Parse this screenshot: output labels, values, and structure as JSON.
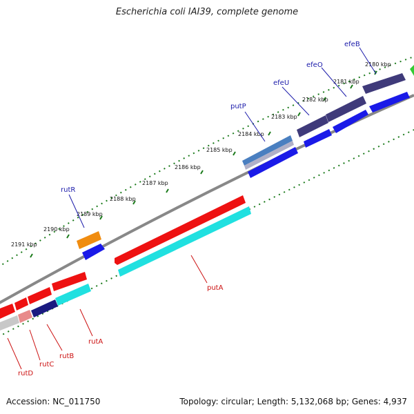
{
  "title": "Escherichia coli IAI39, complete genome",
  "footer": {
    "accession": "Accession: NC_011750",
    "summary": "Topology: circular; Length: 5,132,068 bp; Genes: 4,937"
  },
  "colors": {
    "forward_label": "#1a1aaa",
    "reverse_label": "#cc1111",
    "tick": "#1a7a1a",
    "backbone": "#888888"
  },
  "scale_labels": [
    "2180 kbp",
    "2181 kbp",
    "2182 kbp",
    "2183 kbp",
    "2184 kbp",
    "2185 kbp",
    "2186 kbp",
    "2187 kbp",
    "2188 kbp",
    "2189 kbp",
    "2190 kbp",
    "2191 kbp"
  ],
  "forward_genes": [
    "efeB",
    "efeO",
    "efeU",
    "putP",
    "rutR"
  ],
  "reverse_genes": [
    "putA",
    "rutA",
    "rutB",
    "rutC",
    "rutD"
  ]
}
